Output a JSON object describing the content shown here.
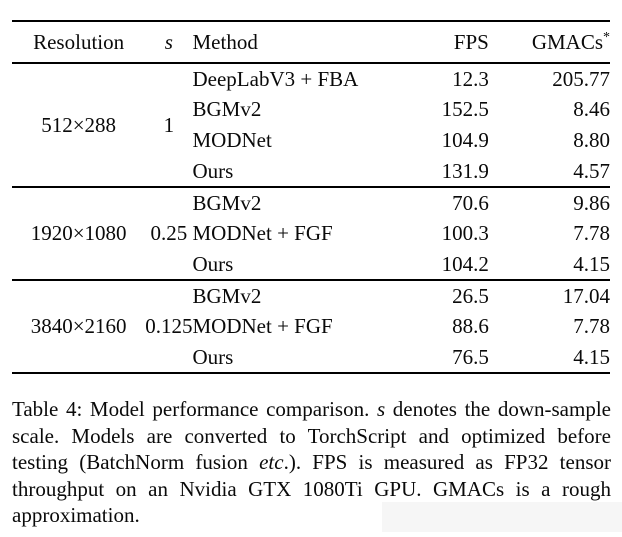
{
  "table": {
    "headers": {
      "resolution": "Resolution",
      "s": "s",
      "method": "Method",
      "fps": "FPS",
      "gmacs": "GMACs",
      "gmacs_sup": "*"
    },
    "sections": [
      {
        "resolution": "512×288",
        "s": "1",
        "rows": [
          {
            "method": "DeepLabV3 + FBA",
            "fps": "12.3",
            "gmacs": "205.77",
            "fps_bold": false,
            "gmacs_bold": false
          },
          {
            "method": "BGMv2",
            "fps": "152.5",
            "gmacs": "8.46",
            "fps_bold": true,
            "gmacs_bold": false
          },
          {
            "method": "MODNet",
            "fps": "104.9",
            "gmacs": "8.80",
            "fps_bold": false,
            "gmacs_bold": false
          },
          {
            "method": "Ours",
            "fps": "131.9",
            "gmacs": "4.57",
            "fps_bold": false,
            "gmacs_bold": true
          }
        ]
      },
      {
        "resolution": "1920×1080",
        "s": "0.25",
        "rows": [
          {
            "method": "BGMv2",
            "fps": "70.6",
            "gmacs": "9.86",
            "fps_bold": false,
            "gmacs_bold": false
          },
          {
            "method": "MODNet + FGF",
            "fps": "100.3",
            "gmacs": "7.78",
            "fps_bold": false,
            "gmacs_bold": false
          },
          {
            "method": "Ours",
            "fps": "104.2",
            "gmacs": "4.15",
            "fps_bold": true,
            "gmacs_bold": true
          }
        ]
      },
      {
        "resolution": "3840×2160",
        "s": "0.125",
        "rows": [
          {
            "method": "BGMv2",
            "fps": "26.5",
            "gmacs": "17.04",
            "fps_bold": false,
            "gmacs_bold": false
          },
          {
            "method": "MODNet + FGF",
            "fps": "88.6",
            "gmacs": "7.78",
            "fps_bold": true,
            "gmacs_bold": false
          },
          {
            "method": "Ours",
            "fps": "76.5",
            "gmacs": "4.15",
            "fps_bold": false,
            "gmacs_bold": true
          }
        ]
      }
    ]
  },
  "caption": {
    "segments": [
      {
        "text": "Table 4: Model performance comparison. ",
        "italic": false
      },
      {
        "text": "s",
        "italic": true
      },
      {
        "text": " denotes the down-sample scale. Models are converted to TorchScript and optimized before testing (BatchNorm fusion ",
        "italic": false
      },
      {
        "text": "etc",
        "italic": true
      },
      {
        "text": ".). FPS is measured as FP32 tensor throughput on an Nvidia GTX 1080Ti GPU. GMACs is a rough approximation.",
        "italic": false
      }
    ]
  }
}
